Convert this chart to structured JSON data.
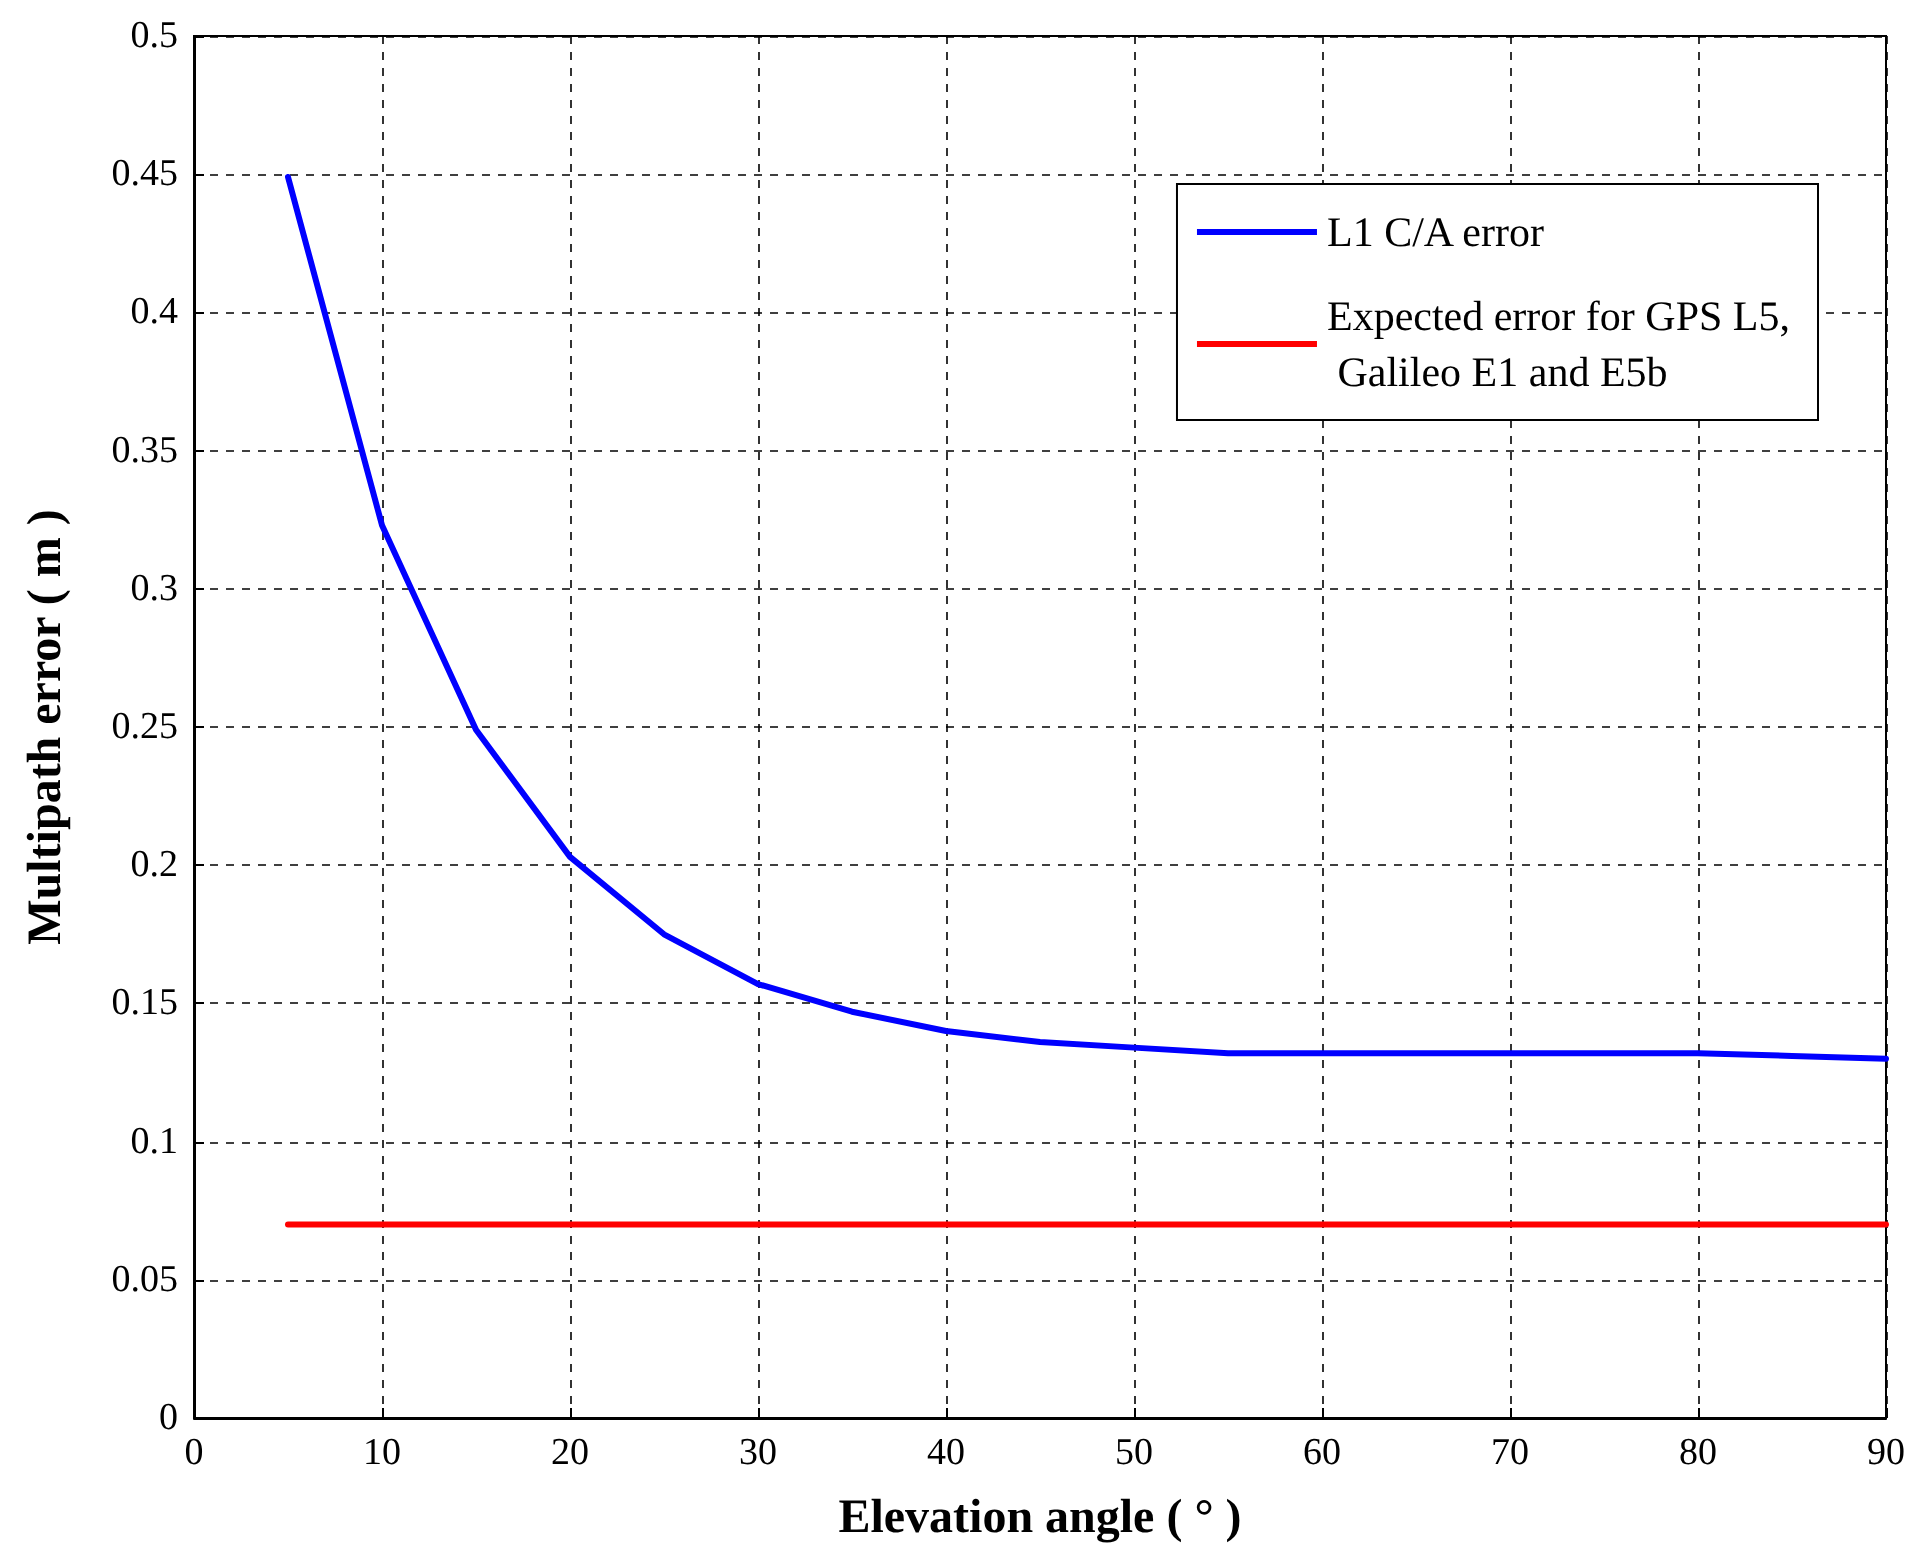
{
  "chart_data": {
    "type": "line",
    "xlabel": "Elevation angle ( ° )",
    "ylabel": "Multipath error ( m )",
    "series": [
      {
        "name": "L1 C/A error",
        "color": "#0000ff",
        "x": [
          5,
          10,
          15,
          20,
          25,
          30,
          35,
          40,
          45,
          50,
          55,
          60,
          65,
          70,
          75,
          80,
          85,
          90
        ],
        "values": [
          0.449,
          0.323,
          0.249,
          0.203,
          0.175,
          0.157,
          0.147,
          0.14,
          0.136,
          0.134,
          0.132,
          0.132,
          0.132,
          0.132,
          0.132,
          0.132,
          0.131,
          0.13
        ]
      },
      {
        "name": "Expected error for GPS L5,\n Galileo E1 and E5b",
        "color": "#ff0000",
        "x": [
          5,
          90
        ],
        "values": [
          0.07,
          0.07
        ]
      }
    ],
    "xlim": [
      0,
      90
    ],
    "xticks": [
      0,
      10,
      20,
      30,
      40,
      50,
      60,
      70,
      80,
      90
    ],
    "ylim": [
      0,
      0.5
    ],
    "yticks": [
      0,
      0.05,
      0.1,
      0.15,
      0.2,
      0.25,
      0.3,
      0.35,
      0.4,
      0.45,
      0.5
    ],
    "grid": true,
    "legend": "top right",
    "marker": "none",
    "line_style": "solid"
  }
}
